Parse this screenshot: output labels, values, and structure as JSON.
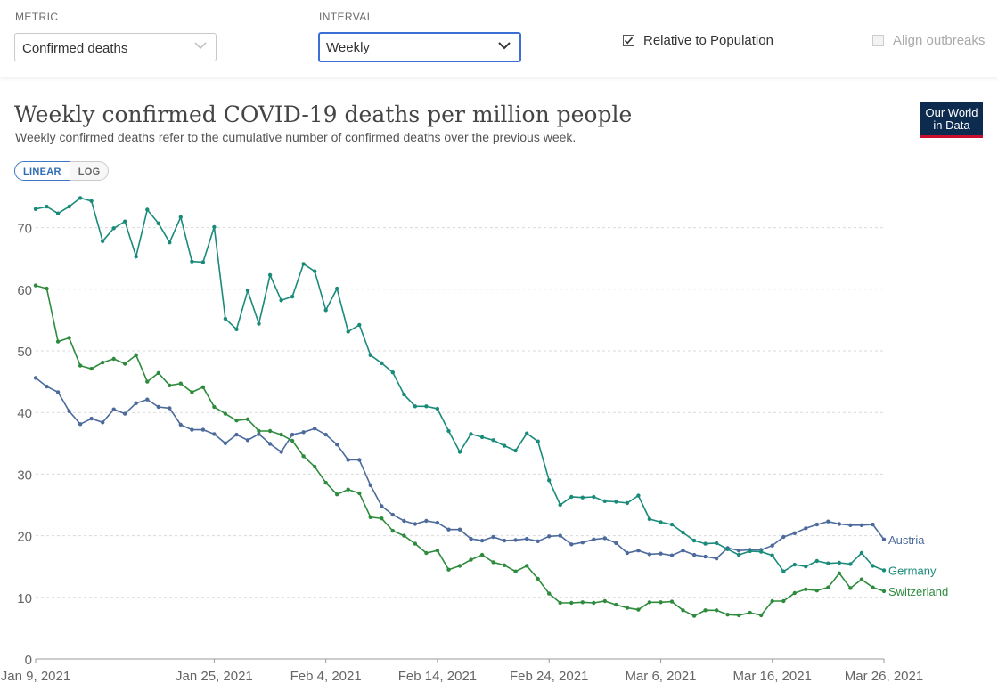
{
  "controls": {
    "metric_label": "METRIC",
    "metric_value": "Confirmed deaths",
    "interval_label": "INTERVAL",
    "interval_value": "Weekly",
    "relative_label": "Relative to Population",
    "relative_checked": true,
    "align_label": "Align outbreaks",
    "align_checked": false
  },
  "header": {
    "logo_line1": "Our World",
    "logo_line2": "in Data",
    "logo_color": "#0d2a4f",
    "logo_accent": "#c8102e"
  },
  "scale_toggle": {
    "linear": "LINEAR",
    "log": "LOG",
    "selected": "LINEAR"
  },
  "chart_data": {
    "type": "line",
    "title": "Weekly confirmed COVID-19 deaths per million people",
    "subtitle": "Weekly confirmed deaths refer to the cumulative number of confirmed deaths over the previous week.",
    "xlabel": "",
    "ylabel": "",
    "ylim": [
      0,
      75
    ],
    "yticks": [
      0,
      10,
      20,
      30,
      40,
      50,
      60,
      70
    ],
    "x_start": "Jan 9, 2021",
    "x_end": "Mar 26, 2021",
    "xticks": [
      "Jan 9, 2021",
      "Jan 25, 2021",
      "Feb 4, 2021",
      "Feb 14, 2021",
      "Feb 24, 2021",
      "Mar 6, 2021",
      "Mar 16, 2021",
      "Mar 26, 2021"
    ],
    "xtick_days": [
      0,
      16,
      26,
      36,
      46,
      56,
      66,
      76
    ],
    "grid": true,
    "legend": "line-end labels",
    "series": [
      {
        "name": "Austria",
        "color": "#4c6a9c",
        "values": [
          45.6,
          44.2,
          43.3,
          40.2,
          38.1,
          39.0,
          38.4,
          40.5,
          39.8,
          41.5,
          42.1,
          40.9,
          40.7,
          38.0,
          37.2,
          37.2,
          36.5,
          35.0,
          36.4,
          35.5,
          36.5,
          34.9,
          33.6,
          36.4,
          36.8,
          37.4,
          36.4,
          34.8,
          32.3,
          32.3,
          28.2,
          24.8,
          23.4,
          22.4,
          21.9,
          22.4,
          22.1,
          21.0,
          21.0,
          19.5,
          19.2,
          19.8,
          19.2,
          19.3,
          19.5,
          19.1,
          19.9,
          20.0,
          18.6,
          18.9,
          19.4,
          19.6,
          18.8,
          17.2,
          17.6,
          17.0,
          17.1,
          16.8,
          17.6,
          16.9,
          16.6,
          16.3,
          18.0,
          17.6,
          17.7,
          17.7,
          18.4,
          19.8,
          20.4,
          21.2,
          21.8,
          22.3,
          21.9,
          21.7,
          21.7,
          21.8,
          19.4
        ]
      },
      {
        "name": "Germany",
        "color": "#1a8b7a",
        "values": [
          73.0,
          73.4,
          72.3,
          73.4,
          74.8,
          74.3,
          67.8,
          69.9,
          71.0,
          65.3,
          72.9,
          70.7,
          67.6,
          71.7,
          64.5,
          64.4,
          70.1,
          55.2,
          53.5,
          59.8,
          54.4,
          62.3,
          58.2,
          58.8,
          64.1,
          62.9,
          56.6,
          60.1,
          53.1,
          54.2,
          49.3,
          48.0,
          46.5,
          42.9,
          41.0,
          41.0,
          40.6,
          37.0,
          33.6,
          36.5,
          36.0,
          35.5,
          34.6,
          33.8,
          36.6,
          35.3,
          29.0,
          25.0,
          26.3,
          26.2,
          26.3,
          25.6,
          25.5,
          25.3,
          26.5,
          22.7,
          22.2,
          21.8,
          20.5,
          19.2,
          18.7,
          18.8,
          17.8,
          16.9,
          17.5,
          17.4,
          16.8,
          14.2,
          15.3,
          15.0,
          15.9,
          15.5,
          15.6,
          15.4,
          17.2,
          15.1,
          14.4
        ]
      },
      {
        "name": "Switzerland",
        "color": "#2e8b3d",
        "values": [
          60.6,
          60.1,
          51.5,
          52.1,
          47.6,
          47.1,
          48.1,
          48.7,
          47.9,
          49.3,
          45.0,
          46.4,
          44.4,
          44.7,
          43.3,
          44.1,
          40.9,
          39.8,
          38.7,
          38.9,
          37.0,
          37.0,
          36.4,
          35.4,
          32.9,
          31.2,
          28.6,
          26.7,
          27.5,
          26.9,
          23.0,
          22.8,
          20.8,
          20.0,
          18.7,
          17.2,
          17.6,
          14.5,
          15.1,
          16.1,
          16.9,
          15.7,
          15.2,
          14.2,
          15.1,
          13.0,
          10.6,
          9.1,
          9.1,
          9.2,
          9.1,
          9.4,
          8.8,
          8.3,
          8.0,
          9.2,
          9.2,
          9.3,
          7.9,
          7.0,
          7.9,
          7.9,
          7.2,
          7.1,
          7.5,
          7.1,
          9.4,
          9.4,
          10.7,
          11.3,
          11.1,
          11.6,
          13.9,
          11.5,
          12.9,
          11.6,
          11.0
        ]
      }
    ]
  }
}
